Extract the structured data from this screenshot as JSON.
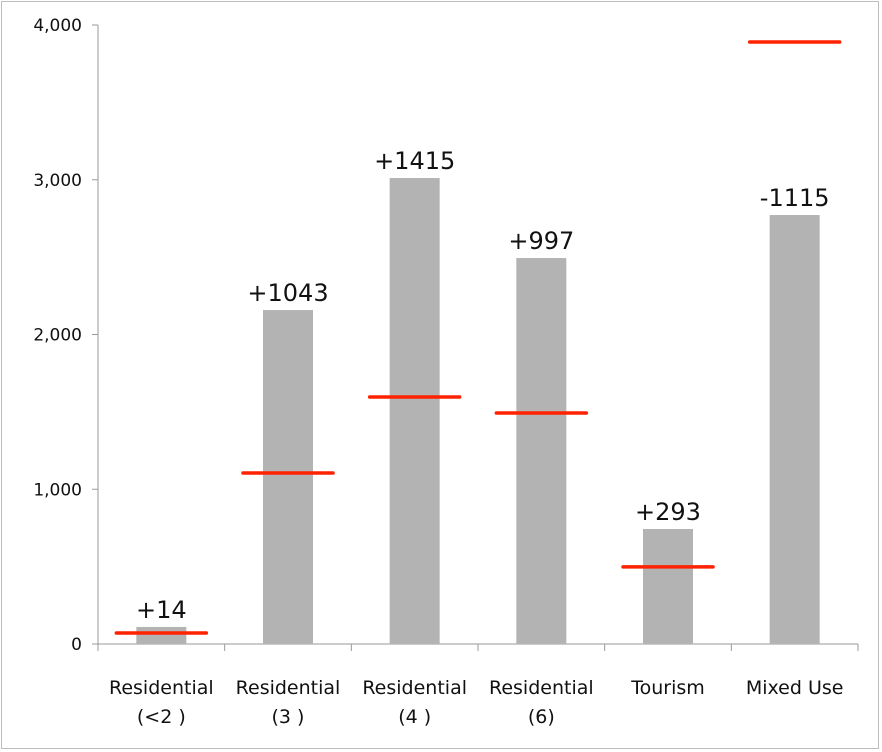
{
  "chart_data": {
    "type": "bar",
    "title": "",
    "xlabel": "",
    "ylabel": "",
    "ylim": [
      0,
      4000
    ],
    "yticks": [
      "0",
      "1,000",
      "2,000",
      "3,000",
      "4,000"
    ],
    "ytick_values": [
      0,
      1000,
      2000,
      3000,
      4000
    ],
    "categories": [
      [
        "Residential",
        "(<2 )"
      ],
      [
        "Residential",
        "(3 )"
      ],
      [
        "Residential",
        "(4 )"
      ],
      [
        "Residential",
        "(6)"
      ],
      [
        "Tourism",
        ""
      ],
      [
        "Mixed Use",
        ""
      ]
    ],
    "series": [
      {
        "name": "bars",
        "values": [
          110,
          2158,
          3011,
          2494,
          743,
          2772
        ],
        "color": "#b3b3b3"
      },
      {
        "name": "markers",
        "values": [
          71,
          1105,
          1596,
          1493,
          498,
          3890
        ],
        "color": "#ff2200"
      }
    ],
    "data_labels": [
      "+14",
      "+1043",
      "+1415",
      "+997",
      "+293",
      "-1115"
    ],
    "grid": false,
    "legend": "none"
  }
}
